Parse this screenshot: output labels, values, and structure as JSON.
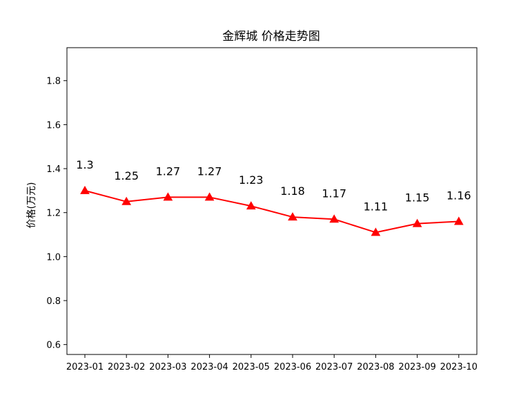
{
  "chart_data": {
    "type": "line",
    "title": "金辉城 价格走势图",
    "xlabel": "",
    "ylabel": "价格(万元)",
    "categories": [
      "2023-01",
      "2023-02",
      "2023-03",
      "2023-04",
      "2023-05",
      "2023-06",
      "2023-07",
      "2023-08",
      "2023-09",
      "2023-10"
    ],
    "series": [
      {
        "values": [
          1.3,
          1.25,
          1.27,
          1.27,
          1.23,
          1.18,
          1.17,
          1.11,
          1.15,
          1.16
        ],
        "data_labels": [
          "1.3",
          "1.25",
          "1.27",
          "1.27",
          "1.23",
          "1.18",
          "1.17",
          "1.11",
          "1.15",
          "1.16"
        ],
        "color": "#ff0000",
        "marker": "triangle-up"
      }
    ],
    "ylim": [
      0.555,
      1.95
    ],
    "yticks": [
      0.6,
      0.8,
      1.0,
      1.2,
      1.4,
      1.6,
      1.8
    ],
    "ytick_labels": [
      "0.6",
      "0.8",
      "1.0",
      "1.2",
      "1.4",
      "1.6",
      "1.8"
    ],
    "grid": false,
    "legend": "none"
  }
}
